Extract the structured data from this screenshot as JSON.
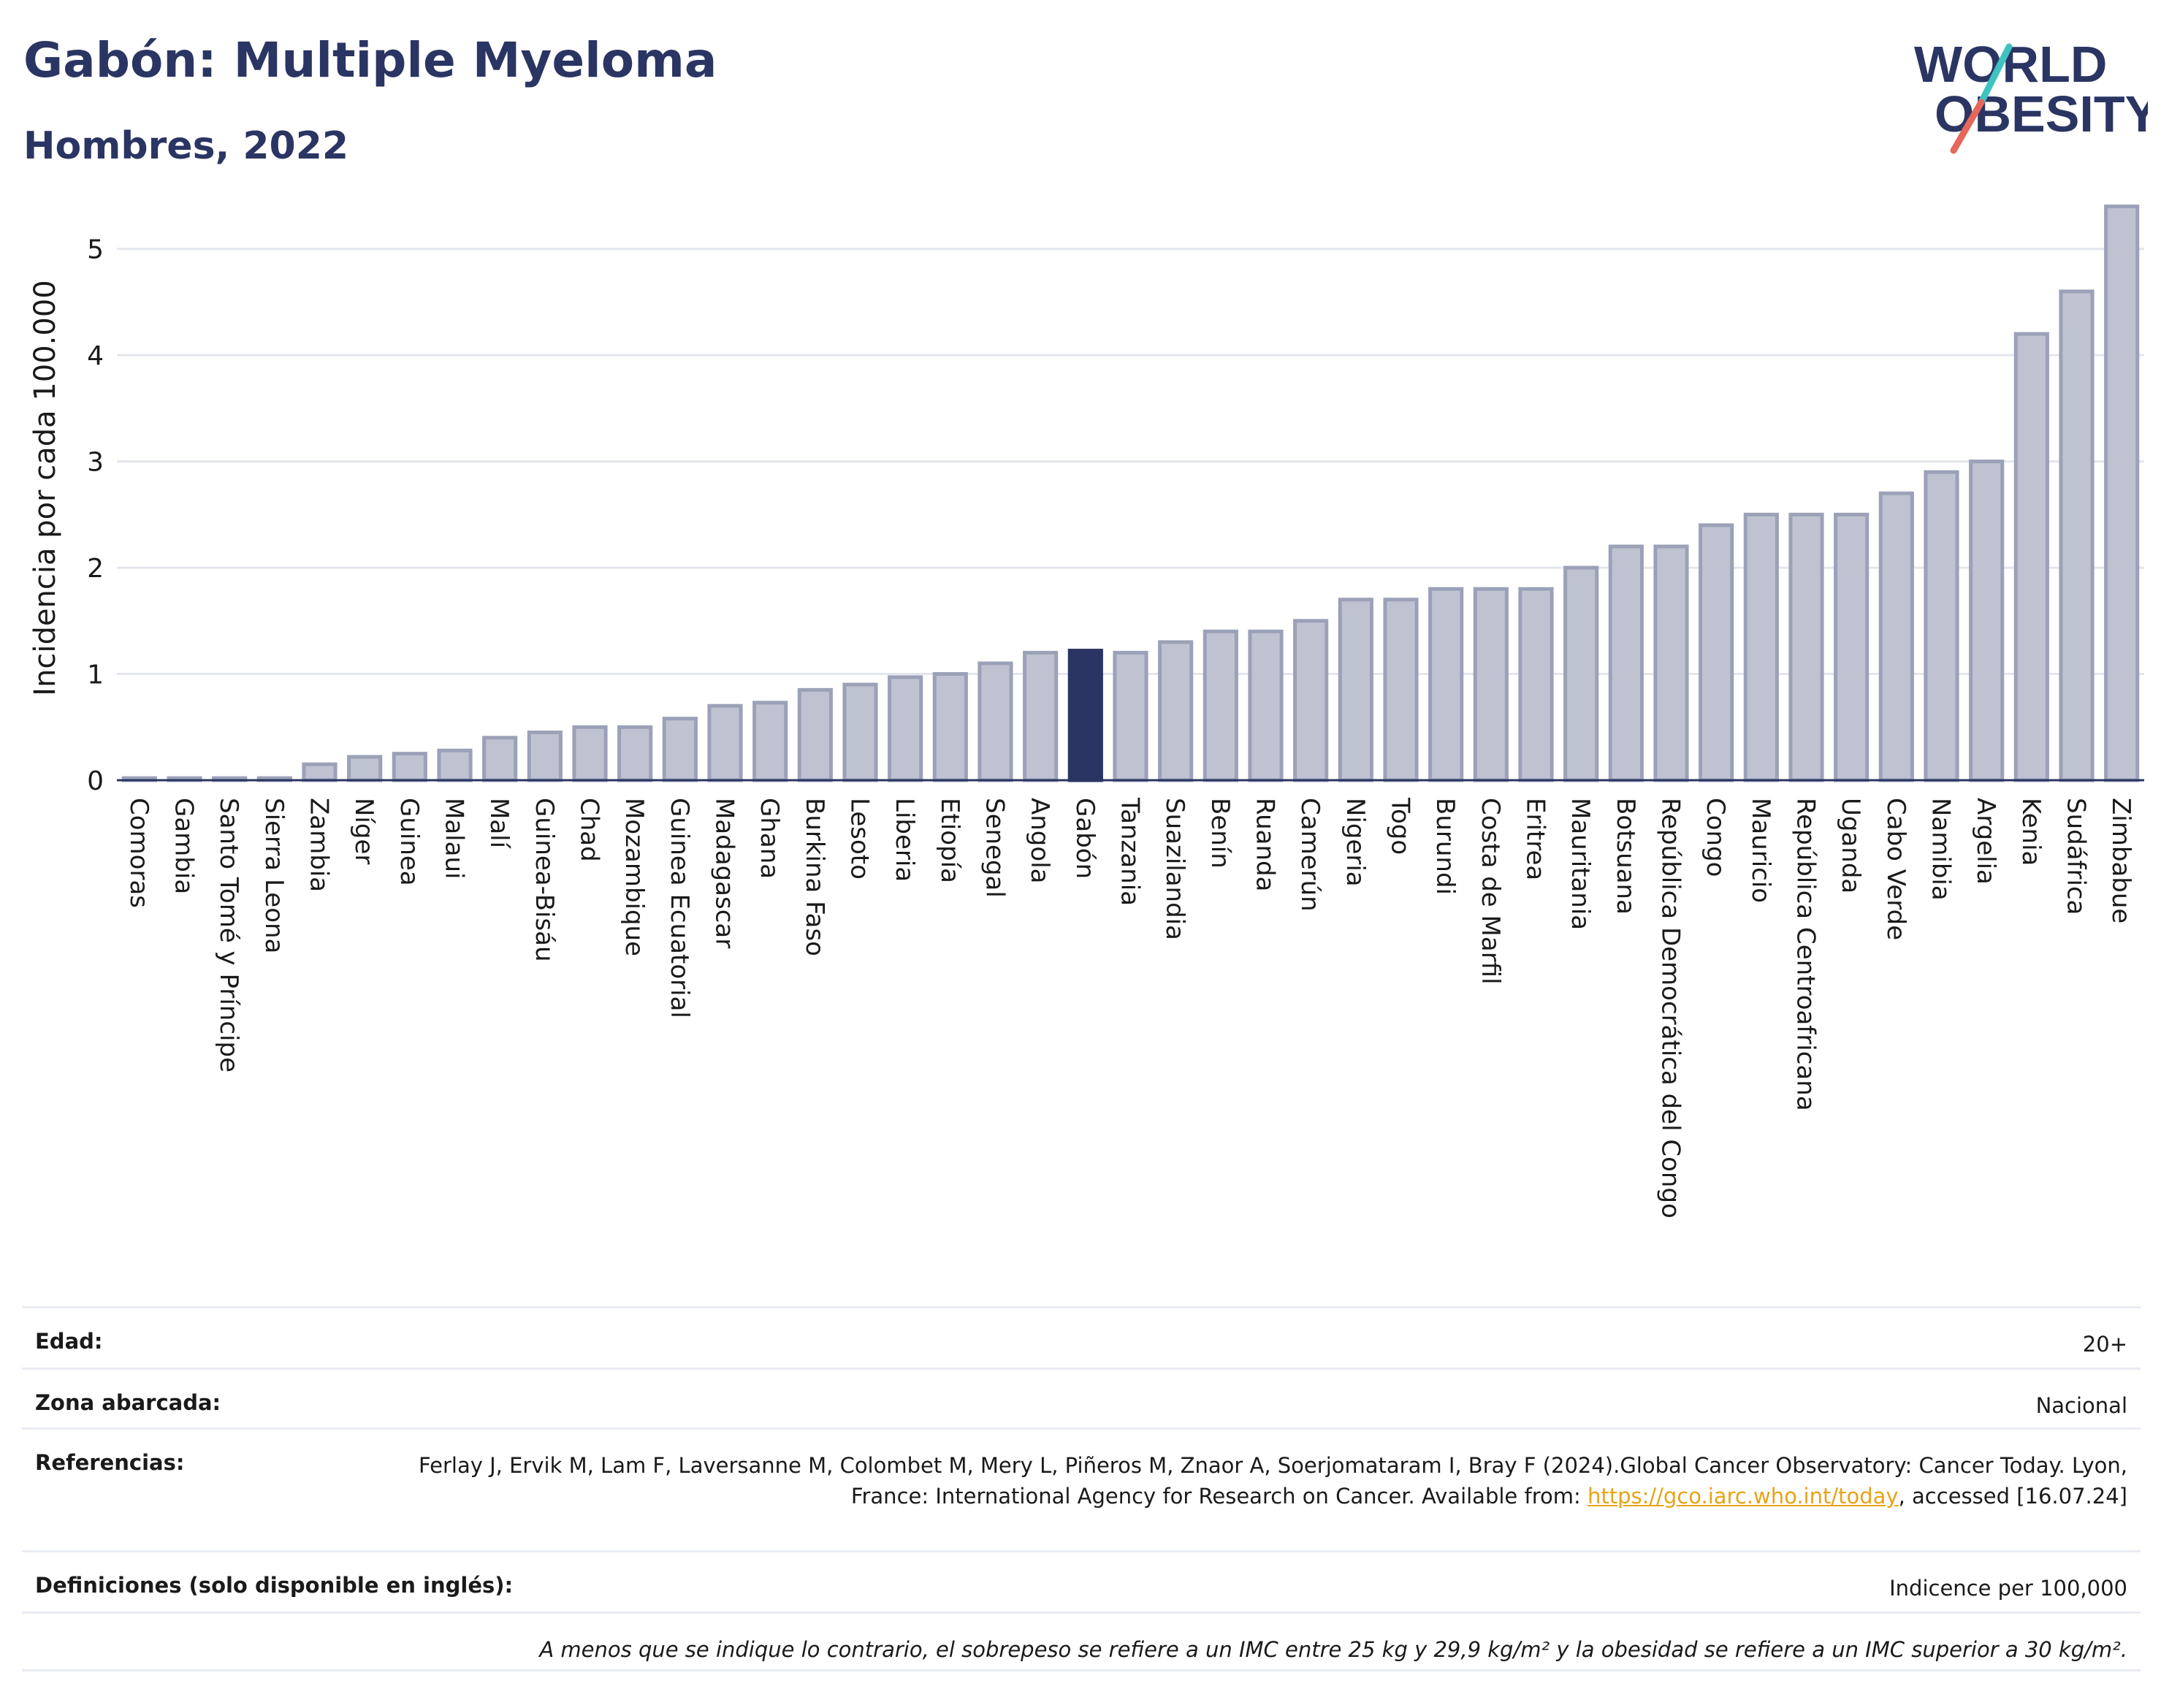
{
  "header": {
    "title": "Gabón: Multiple Myeloma",
    "subtitle": "Hombres, 2022"
  },
  "logo": {
    "line1": "WORLD",
    "line2": "OBESITY",
    "colors": {
      "text": "#2b3563",
      "slash_top": "#3ec3c0",
      "slash_bottom": "#e5685a"
    }
  },
  "chart_data": {
    "type": "bar",
    "ylabel": "Incidencia por cada 100.000",
    "xlabel": "",
    "ylim": [
      0,
      5.5
    ],
    "yticks": [
      0,
      1,
      2,
      3,
      4,
      5
    ],
    "grid": true,
    "highlight": "Gabón",
    "colors": {
      "bar": "#bfc3d1",
      "bar_stroke": "#9ba1b7",
      "highlight": "#2b3563",
      "grid": "#e3e6ee",
      "axis": "#2b3563"
    },
    "categories": [
      "Comoras",
      "Gambia",
      "Santo Tomé y Príncipe",
      "Sierra Leona",
      "Zambia",
      "Níger",
      "Guinea",
      "Malaui",
      "Malí",
      "Guinea-Bisáu",
      "Chad",
      "Mozambique",
      "Guinea Ecuatorial",
      "Madagascar",
      "Ghana",
      "Burkina Faso",
      "Lesoto",
      "Liberia",
      "Etiopía",
      "Senegal",
      "Angola",
      "Gabón",
      "Tanzania",
      "Suazilandia",
      "Benín",
      "Ruanda",
      "Camerún",
      "Nigeria",
      "Togo",
      "Burundi",
      "Costa de Marfil",
      "Eritrea",
      "Mauritania",
      "Botsuana",
      "República Democrática del Congo",
      "Congo",
      "Mauricio",
      "República Centroafricana",
      "Uganda",
      "Cabo Verde",
      "Namibia",
      "Argelia",
      "Kenia",
      "Sudáfrica",
      "Zimbabue"
    ],
    "values": [
      0.02,
      0.02,
      0.02,
      0.02,
      0.15,
      0.22,
      0.25,
      0.28,
      0.4,
      0.45,
      0.5,
      0.5,
      0.58,
      0.7,
      0.73,
      0.85,
      0.9,
      0.97,
      1.0,
      1.1,
      1.2,
      1.22,
      1.2,
      1.3,
      1.4,
      1.4,
      1.5,
      1.7,
      1.7,
      1.8,
      1.8,
      1.8,
      2.0,
      2.2,
      2.2,
      2.4,
      2.5,
      2.5,
      2.5,
      2.7,
      2.9,
      3.0,
      4.2,
      4.6,
      5.4
    ]
  },
  "meta": {
    "age_label": "Edad:",
    "age_value": "20+",
    "area_label": "Zona abarcada:",
    "area_value": "Nacional",
    "ref_label": "Referencias:",
    "ref_text_1": "Ferlay J, Ervik M, Lam F, Laversanne M, Colombet M, Mery L, Piñeros M, Znaor A, Soerjomataram I, Bray F (2024).Global Cancer Observatory: Cancer Today. Lyon, France: International Agency for Research on Cancer. Available from: ",
    "ref_link": "https://gco.iarc.who.int/today",
    "ref_text_2": ", accessed [16.07.24]",
    "def_label": "Definiciones (solo disponible en inglés):",
    "def_value": "Indicence per 100,000",
    "note": "A menos que se indique lo contrario, el sobrepeso se refiere a un IMC entre 25 kg y 29,9 kg/m² y la obesidad se refiere a un IMC superior a 30 kg/m²."
  }
}
